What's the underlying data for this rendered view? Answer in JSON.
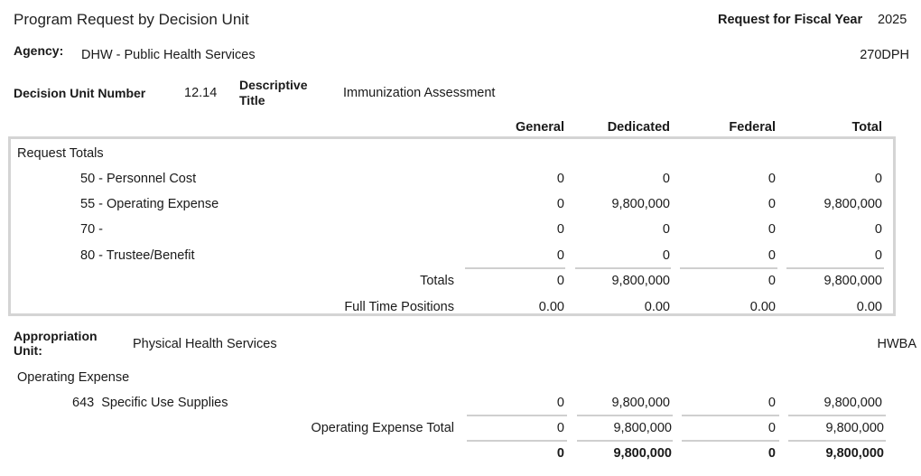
{
  "header": {
    "title": "Program Request by Decision Unit",
    "fiscal_year_label": "Request for Fiscal Year",
    "fiscal_year": "2025"
  },
  "agency": {
    "label": "Agency:",
    "value": "DHW - Public Health Services",
    "code": "270DPH"
  },
  "decision_unit": {
    "number_label": "Decision Unit Number",
    "number": "12.14",
    "title_label_line1": "Descriptive",
    "title_label_line2": "Title",
    "title": "Immunization Assessment"
  },
  "columns": [
    "General",
    "Dedicated",
    "Federal",
    "Total"
  ],
  "request_totals": {
    "label": "Request Totals",
    "rows": [
      {
        "label": "50 - Personnel Cost",
        "values": [
          "0",
          "0",
          "0",
          "0"
        ]
      },
      {
        "label": "55 - Operating Expense",
        "values": [
          "0",
          "9,800,000",
          "0",
          "9,800,000"
        ]
      },
      {
        "label": "70 -",
        "values": [
          "0",
          "0",
          "0",
          "0"
        ]
      },
      {
        "label": "80 - Trustee/Benefit",
        "values": [
          "0",
          "0",
          "0",
          "0"
        ]
      }
    ],
    "totals": {
      "label": "Totals",
      "values": [
        "0",
        "9,800,000",
        "0",
        "9,800,000"
      ]
    },
    "ftp": {
      "label": "Full Time Positions",
      "values": [
        "0.00",
        "0.00",
        "0.00",
        "0.00"
      ]
    }
  },
  "appropriation": {
    "label_line1": "Appropriation",
    "label_line2": "Unit:",
    "value": "Physical Health Services",
    "code": "HWBA"
  },
  "operating_expense": {
    "label": "Operating Expense",
    "row": {
      "label": "643  Specific Use Supplies",
      "values": [
        "0",
        "9,800,000",
        "0",
        "9,800,000"
      ]
    },
    "total": {
      "label": "Operating Expense Total",
      "values": [
        "0",
        "9,800,000",
        "0",
        "9,800,000"
      ]
    },
    "grand": {
      "values": [
        "0",
        "9,800,000",
        "0",
        "9,800,000"
      ]
    }
  }
}
